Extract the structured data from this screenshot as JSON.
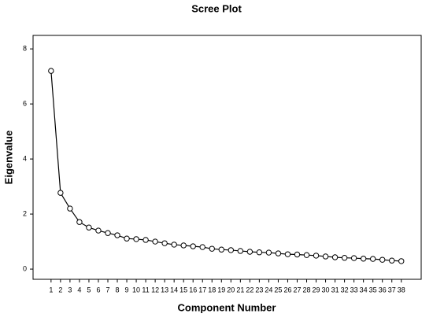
{
  "chart_data": {
    "type": "line",
    "title": "Scree Plot",
    "x_label": "Component Number",
    "y_label": "Eigenvalue",
    "x": [
      1,
      2,
      3,
      4,
      5,
      6,
      7,
      8,
      9,
      10,
      11,
      12,
      13,
      14,
      15,
      16,
      17,
      18,
      19,
      20,
      21,
      22,
      23,
      24,
      25,
      26,
      27,
      28,
      29,
      30,
      31,
      32,
      33,
      34,
      35,
      36,
      37,
      38
    ],
    "series": [
      {
        "color": "#000000",
        "values": [
          7.2,
          2.77,
          2.2,
          1.71,
          1.51,
          1.4,
          1.31,
          1.23,
          1.11,
          1.09,
          1.06,
          1.0,
          0.94,
          0.89,
          0.86,
          0.83,
          0.8,
          0.74,
          0.71,
          0.69,
          0.66,
          0.63,
          0.61,
          0.6,
          0.57,
          0.54,
          0.53,
          0.51,
          0.49,
          0.46,
          0.43,
          0.41,
          0.4,
          0.38,
          0.37,
          0.34,
          0.31,
          0.29
        ]
      }
    ],
    "xlim": [
      -0.9,
      40.1
    ],
    "xticks": [
      1,
      2,
      3,
      4,
      5,
      6,
      7,
      8,
      9,
      10,
      11,
      12,
      13,
      14,
      15,
      16,
      17,
      18,
      19,
      20,
      21,
      22,
      23,
      24,
      25,
      26,
      27,
      28,
      29,
      30,
      31,
      32,
      33,
      34,
      35,
      36,
      37,
      38
    ],
    "ylim": [
      -0.37,
      8.49
    ],
    "yticks": [
      0,
      2,
      4,
      6,
      8
    ],
    "grid": false
  }
}
